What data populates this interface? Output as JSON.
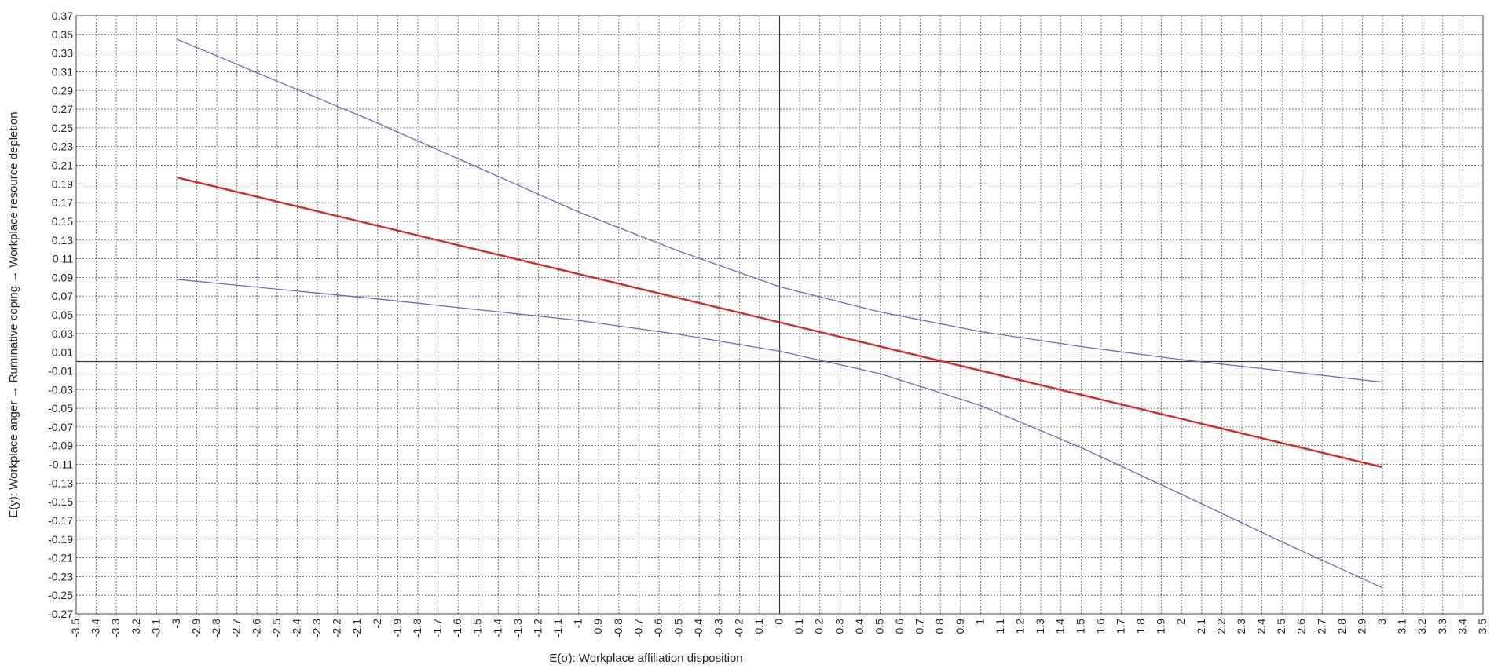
{
  "chart_data": {
    "type": "line",
    "title": "",
    "xlabel": "E(σ): Workplace affiliation disposition",
    "ylabel": "E(y): Workplace anger → Ruminative coping → Workplace resource depletion",
    "xlim": [
      -3.5,
      3.5
    ],
    "ylim": [
      -0.27,
      0.37
    ],
    "x_tick_step": 0.1,
    "y_tick_step": 0.02,
    "grid": true,
    "grid_style": "dotted",
    "legend": "none",
    "reference_lines": {
      "x": 0,
      "y": 0
    },
    "x_tick_labels": [
      "-3.5",
      "-3.4",
      "-3.3",
      "-3.2",
      "-3.1",
      "-3",
      "-2.9",
      "-2.8",
      "-2.7",
      "-2.6",
      "-2.5",
      "-2.4",
      "-2.3",
      "-2.2",
      "-2.1",
      "-2",
      "-1.9",
      "-1.8",
      "-1.7",
      "-1.6",
      "-1.5",
      "-1.4",
      "-1.3",
      "-1.2",
      "-1.1",
      "-1",
      "-0.9",
      "-0.8",
      "-0.7",
      "-0.6",
      "-0.5",
      "-0.4",
      "-0.3",
      "-0.2",
      "-0.1",
      "0",
      "0.1",
      "0.2",
      "0.3",
      "0.4",
      "0.5",
      "0.6",
      "0.7",
      "0.8",
      "0.9",
      "1",
      "1.1",
      "1.2",
      "1.3",
      "1.4",
      "1.5",
      "1.6",
      "1.7",
      "1.8",
      "1.9",
      "2",
      "2.1",
      "2.2",
      "2.3",
      "2.4",
      "2.5",
      "2.6",
      "2.7",
      "2.8",
      "2.9",
      "3",
      "3.1",
      "3.2",
      "3.3",
      "3.4",
      "3.5"
    ],
    "y_tick_labels": [
      "0.37",
      "0.35",
      "0.33",
      "0.31",
      "0.29",
      "0.27",
      "0.25",
      "0.23",
      "0.21",
      "0.19",
      "0.17",
      "0.15",
      "0.13",
      "0.11",
      "0.09",
      "0.07",
      "0.05",
      "0.03",
      "0.01",
      "-0.01",
      "-0.03",
      "-0.05",
      "-0.07",
      "-0.09",
      "-0.11",
      "-0.13",
      "-0.15",
      "-0.17",
      "-0.19",
      "-0.21",
      "-0.23",
      "-0.25",
      "-0.27"
    ],
    "series": [
      {
        "color": "#6a6ab8",
        "width": 1.3,
        "x": [
          -3,
          -2,
          -1,
          -0.5,
          0,
          0.5,
          1,
          1.5,
          2,
          2.5,
          3
        ],
        "y": [
          0.345,
          0.255,
          0.16,
          0.118,
          0.08,
          0.053,
          0.032,
          0.016,
          0.002,
          -0.01,
          -0.022
        ]
      },
      {
        "color": "#d42a2a",
        "width": 2.4,
        "x": [
          -3,
          3
        ],
        "y": [
          0.197,
          -0.113
        ]
      },
      {
        "color": "#6a6ab8",
        "width": 1.3,
        "x": [
          -3,
          -2,
          -1,
          -0.5,
          0,
          0.5,
          1,
          1.5,
          2,
          2.5,
          3
        ],
        "y": [
          0.088,
          0.067,
          0.044,
          0.029,
          0.011,
          -0.013,
          -0.047,
          -0.092,
          -0.142,
          -0.193,
          -0.242
        ]
      }
    ]
  }
}
